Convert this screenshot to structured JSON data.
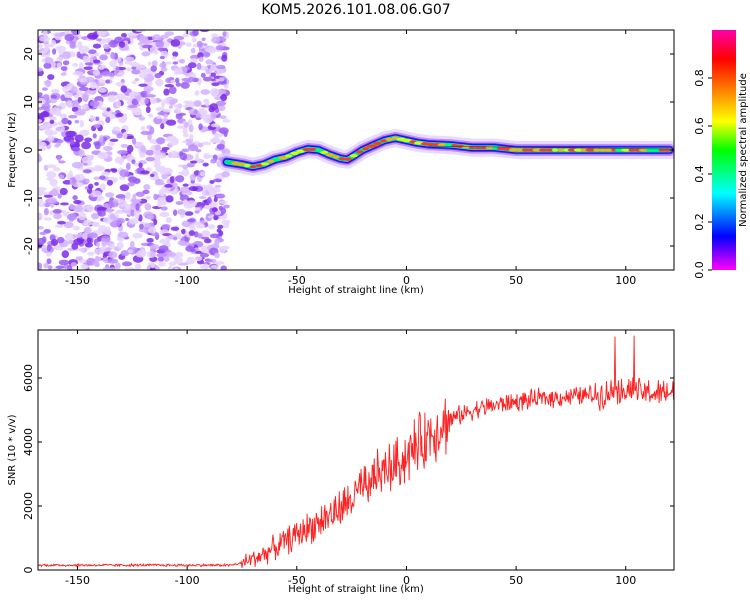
{
  "title": "KOM5.2026.101.08.06.G07",
  "colors": {
    "snr_line": "#ff2020",
    "noise": "#8a2be2",
    "colorbar": [
      "#ff00ff",
      "#0000ff",
      "#00ffff",
      "#00ff00",
      "#ffff00",
      "#ff8000",
      "#ff0000",
      "#ff00aa"
    ]
  },
  "chart_data": [
    {
      "type": "heatmap",
      "name": "spectrogram",
      "xlabel": "Height of straight line (km)",
      "ylabel": "Frequency (Hz)",
      "xlim": [
        -168,
        122
      ],
      "ylim": [
        -25,
        25
      ],
      "xticks": [
        -150,
        -100,
        -50,
        0,
        50,
        100
      ],
      "yticks": [
        -20,
        -10,
        0,
        10,
        20
      ],
      "noise_region_x": [
        -168,
        -82
      ],
      "ridge": {
        "x": [
          -82,
          -75,
          -70,
          -65,
          -60,
          -55,
          -50,
          -45,
          -40,
          -35,
          -30,
          -27,
          -25,
          -20,
          -15,
          -10,
          -5,
          0,
          5,
          10,
          20,
          30,
          40,
          50,
          60,
          70,
          80,
          90,
          100,
          110,
          120
        ],
        "frequency": [
          -2.5,
          -3,
          -3.5,
          -3,
          -2,
          -1.5,
          -0.5,
          0.2,
          0,
          -1,
          -1.8,
          -2,
          -1.5,
          0,
          1,
          2,
          2.5,
          2,
          1.5,
          1.2,
          1,
          0.5,
          0.5,
          0,
          0,
          0,
          0,
          0,
          0,
          0,
          0
        ]
      },
      "colorbar": {
        "label": "Normalized spectral amplitude",
        "range": [
          0,
          1
        ],
        "ticks": [
          "0.0",
          "0.2",
          "0.4",
          "0.6",
          "0.8"
        ]
      }
    },
    {
      "type": "line",
      "name": "snr",
      "xlabel": "Height of straight line (km)",
      "ylabel": "SNR (10 * v/v)",
      "xlim": [
        -168,
        122
      ],
      "ylim": [
        0,
        7500
      ],
      "xticks": [
        -150,
        -100,
        -50,
        0,
        50,
        100
      ],
      "yticks": [
        0,
        2000,
        4000,
        6000
      ],
      "series": [
        {
          "name": "SNR",
          "x": [
            -168,
            -150,
            -130,
            -110,
            -90,
            -80,
            -75,
            -70,
            -65,
            -60,
            -55,
            -50,
            -45,
            -40,
            -35,
            -30,
            -25,
            -20,
            -15,
            -10,
            -5,
            0,
            5,
            10,
            15,
            20,
            25,
            30,
            40,
            50,
            60,
            70,
            80,
            90,
            95,
            100,
            105,
            110,
            115,
            120
          ],
          "y": [
            150,
            150,
            150,
            150,
            150,
            150,
            220,
            350,
            500,
            700,
            900,
            1100,
            1300,
            1500,
            1700,
            1900,
            2200,
            2600,
            2900,
            3100,
            3300,
            3550,
            3900,
            4200,
            4500,
            4700,
            4850,
            5000,
            5150,
            5250,
            5350,
            5400,
            5450,
            5500,
            5600,
            5650,
            5550,
            5550,
            5500,
            5550
          ]
        }
      ]
    }
  ]
}
